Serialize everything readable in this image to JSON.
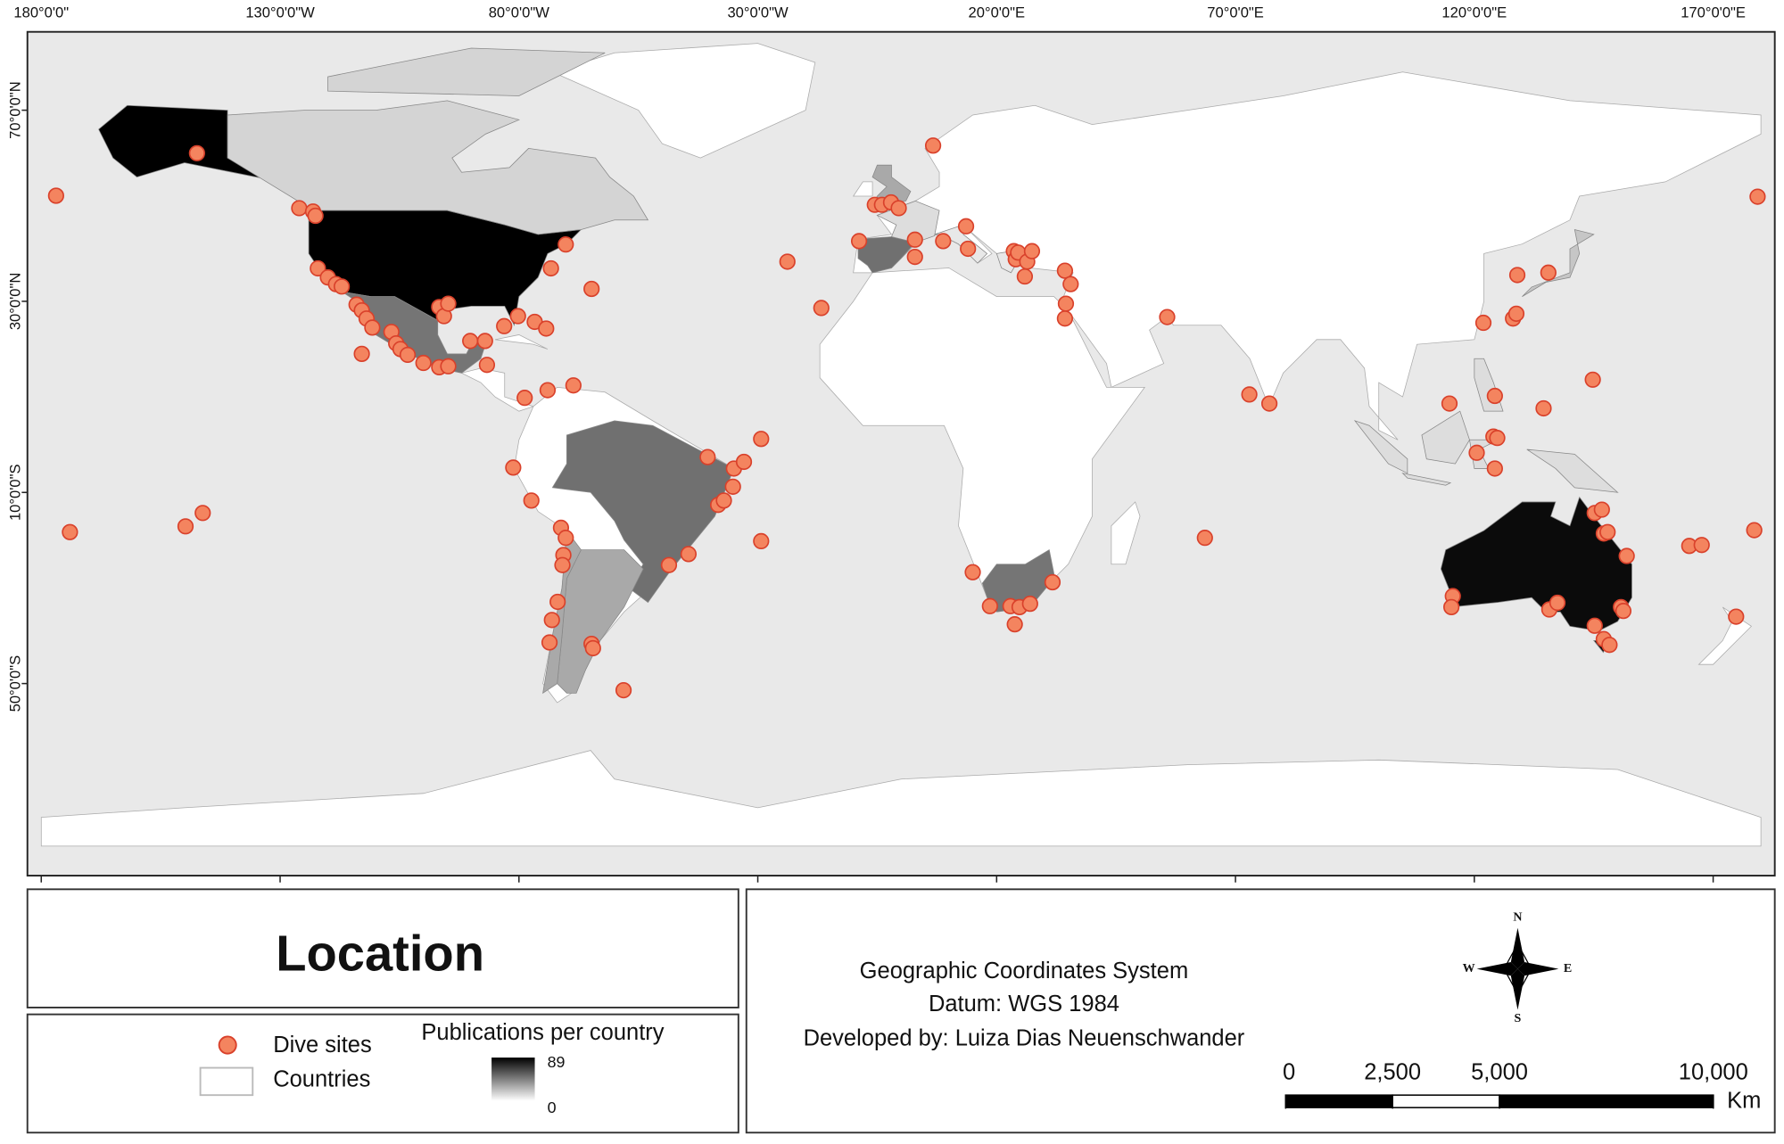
{
  "title": "Location",
  "map": {
    "xlim": [
      -182.9,
      182.9
    ],
    "ylim": [
      -90.2,
      86.4
    ],
    "xticks": [
      {
        "value": -180,
        "label": "180°0'0\""
      },
      {
        "value": -130,
        "label": "130°0'0\"W"
      },
      {
        "value": -80,
        "label": "80°0'0\"W"
      },
      {
        "value": -30,
        "label": "30°0'0\"W"
      },
      {
        "value": 20,
        "label": "20°0'0\"E"
      },
      {
        "value": 70,
        "label": "70°0'0\"E"
      },
      {
        "value": 120,
        "label": "120°0'0\"E"
      },
      {
        "value": 170,
        "label": "170°0'0\"E"
      }
    ],
    "yticks": [
      {
        "value": 70,
        "label": "70°0'0\"N"
      },
      {
        "value": 30,
        "label": "30°0'0\"N"
      },
      {
        "value": -10,
        "label": "10°0'0\"S"
      },
      {
        "value": -50,
        "label": "50°0'0\"S"
      }
    ],
    "dive_sites": {
      "color": "#f4845f",
      "lon": [
        -176.9,
        -147.4,
        -174,
        -149.8,
        -146.2,
        -126,
        -123.1,
        -122.6,
        -122.1,
        -120,
        -118.3,
        -117.1,
        -114,
        -112.9,
        -111.9,
        -110.7,
        -112.9,
        -106.7,
        -105.7,
        -104.8,
        -103.3,
        -100,
        -96.7,
        -94.8,
        -96.7,
        -95.7,
        -94.8,
        -90.2,
        -87.1,
        -86.7,
        -83.1,
        -80.2,
        -76.7,
        -74.3,
        -73.3,
        -70.2,
        -64.8,
        -68.6,
        -74,
        -78.8,
        -81.2,
        -77.4,
        -71.2,
        -70.2,
        -70.7,
        -70.9,
        -71.9,
        -73.1,
        -73.6,
        -64.8,
        -64.5,
        -58.1,
        -48.6,
        -44.5,
        -38.3,
        -37.1,
        -35.2,
        -35,
        -32.9,
        -40.5,
        -29.3,
        -29.3,
        -23.8,
        -16.7,
        -8.8,
        -5.5,
        -4,
        -2.1,
        -0.5,
        6.7,
        2.9,
        2.9,
        8.8,
        14,
        13.6,
        23.6,
        24,
        24.5,
        26.4,
        27.4,
        25.9,
        34.3,
        35.5,
        34.5,
        34.3,
        55.7,
        63.6,
        72.9,
        77.1,
        15,
        18.6,
        22.9,
        24.8,
        27,
        23.8,
        31.7,
        114.8,
        121.9,
        128.1,
        128.8,
        129,
        135.5,
        124.3,
        134.5,
        144.8,
        124,
        124.8,
        120.5,
        124.3,
        115.5,
        115.2,
        135.7,
        137.4,
        145.2,
        146.7,
        147.1,
        147.9,
        151.9,
        150.7,
        151.2,
        145.2,
        147.1,
        148.3,
        165,
        167.6,
        178.6,
        179.3,
        174.8
      ],
      "lat": [
        52.1,
        61,
        -18.3,
        -17.1,
        -14.3,
        49.5,
        48.8,
        47.9,
        36.9,
        35,
        33.6,
        33.1,
        29.3,
        28.1,
        26.4,
        24.5,
        19,
        23.6,
        21.2,
        20,
        18.8,
        17.1,
        16.2,
        16.4,
        28.8,
        26.9,
        29.5,
        21.7,
        21.7,
        16.7,
        24.8,
        26.9,
        25.7,
        24.3,
        36.9,
        41.9,
        32.6,
        12.4,
        11.4,
        9.8,
        -4.8,
        -11.7,
        -17.4,
        -19.5,
        -23.1,
        -25.2,
        -32.9,
        -36.7,
        -41.4,
        -41.7,
        -42.6,
        -51.4,
        -25.2,
        -22.9,
        -12.6,
        -11.7,
        -8.8,
        -5,
        -3.6,
        -2.6,
        1.2,
        -20.2,
        38.3,
        28.6,
        42.6,
        50.2,
        50.2,
        50.7,
        49.5,
        62.6,
        42.9,
        39.3,
        42.6,
        41,
        45.7,
        40.5,
        38.8,
        40.2,
        38.3,
        40.5,
        35.2,
        36.4,
        33.6,
        29.5,
        26.4,
        26.7,
        -19.5,
        10.5,
        8.6,
        -26.7,
        -33.8,
        -33.8,
        -34,
        -33.3,
        -37.6,
        -28.8,
        8.6,
        25.5,
        26.4,
        27.4,
        35.5,
        36,
        10.2,
        7.6,
        13.6,
        1.7,
        1.4,
        -1.7,
        -5,
        -31.7,
        -34,
        -34.5,
        -33.1,
        -14.3,
        -13.6,
        -18.6,
        -18.3,
        -23.3,
        -34,
        -34.8,
        -37.9,
        -40.7,
        -41.9,
        -21.2,
        -21,
        -17.9,
        51.9,
        -36
      ]
    }
  },
  "legend": {
    "dive_sites": "Dive sites",
    "countries": "Countries"
  },
  "publications": {
    "title": "Publications per country",
    "max": 89,
    "min": 0,
    "values": [
      89,
      85,
      50,
      48,
      50,
      48,
      15,
      30,
      30,
      30,
      12,
      20,
      12,
      12,
      8,
      8
    ]
  },
  "info": [
    "Geographic Coordinates System",
    "Datum: WGS 1984",
    "Developed by: Luiza Dias Neuenschwander"
  ],
  "scale_bar": {
    "ticks": [
      0,
      {
        "value": 2500,
        "label": "2,500"
      },
      {
        "value": 5000,
        "label": "5,000"
      },
      {
        "value": 10000,
        "label": "10,000"
      }
    ],
    "unit": "Km"
  },
  "compass": {
    "n": "N",
    "s": "S",
    "e": "E",
    "w": "W"
  }
}
